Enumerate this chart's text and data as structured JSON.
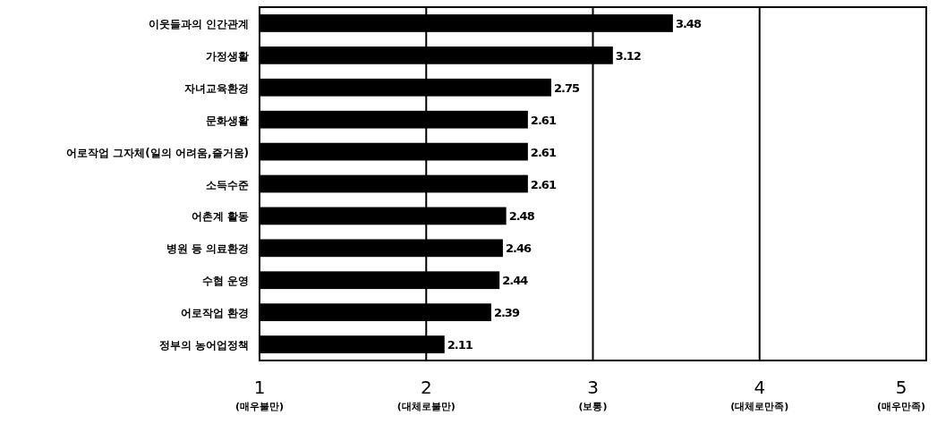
{
  "chart_data": {
    "type": "bar",
    "orientation": "horizontal",
    "categories": [
      "이웃들과의 인간관계",
      "가정생활",
      "자녀교육환경",
      "문화생활",
      "어로작업 그자체(일의 어려움,즐거움)",
      "소득수준",
      "어촌계 활동",
      "병원 등 의료환경",
      "수협 운영",
      "어로작업 환경",
      "정부의 농어업정책"
    ],
    "values": [
      3.48,
      3.12,
      2.75,
      2.61,
      2.61,
      2.61,
      2.48,
      2.46,
      2.44,
      2.39,
      2.11
    ],
    "color": "#000000",
    "xlim": [
      1,
      5
    ],
    "xticks": [
      {
        "value": 1,
        "label": "1\n(매우불만)"
      },
      {
        "value": 2,
        "label": "2\n(대체로불만)"
      },
      {
        "value": 3,
        "label": "3\n(보통)"
      },
      {
        "value": 4,
        "label": "4\n(대체로만족)"
      },
      {
        "value": 5,
        "label": "5\n(매우만족)"
      }
    ],
    "grid": "x",
    "data_labels": true
  }
}
